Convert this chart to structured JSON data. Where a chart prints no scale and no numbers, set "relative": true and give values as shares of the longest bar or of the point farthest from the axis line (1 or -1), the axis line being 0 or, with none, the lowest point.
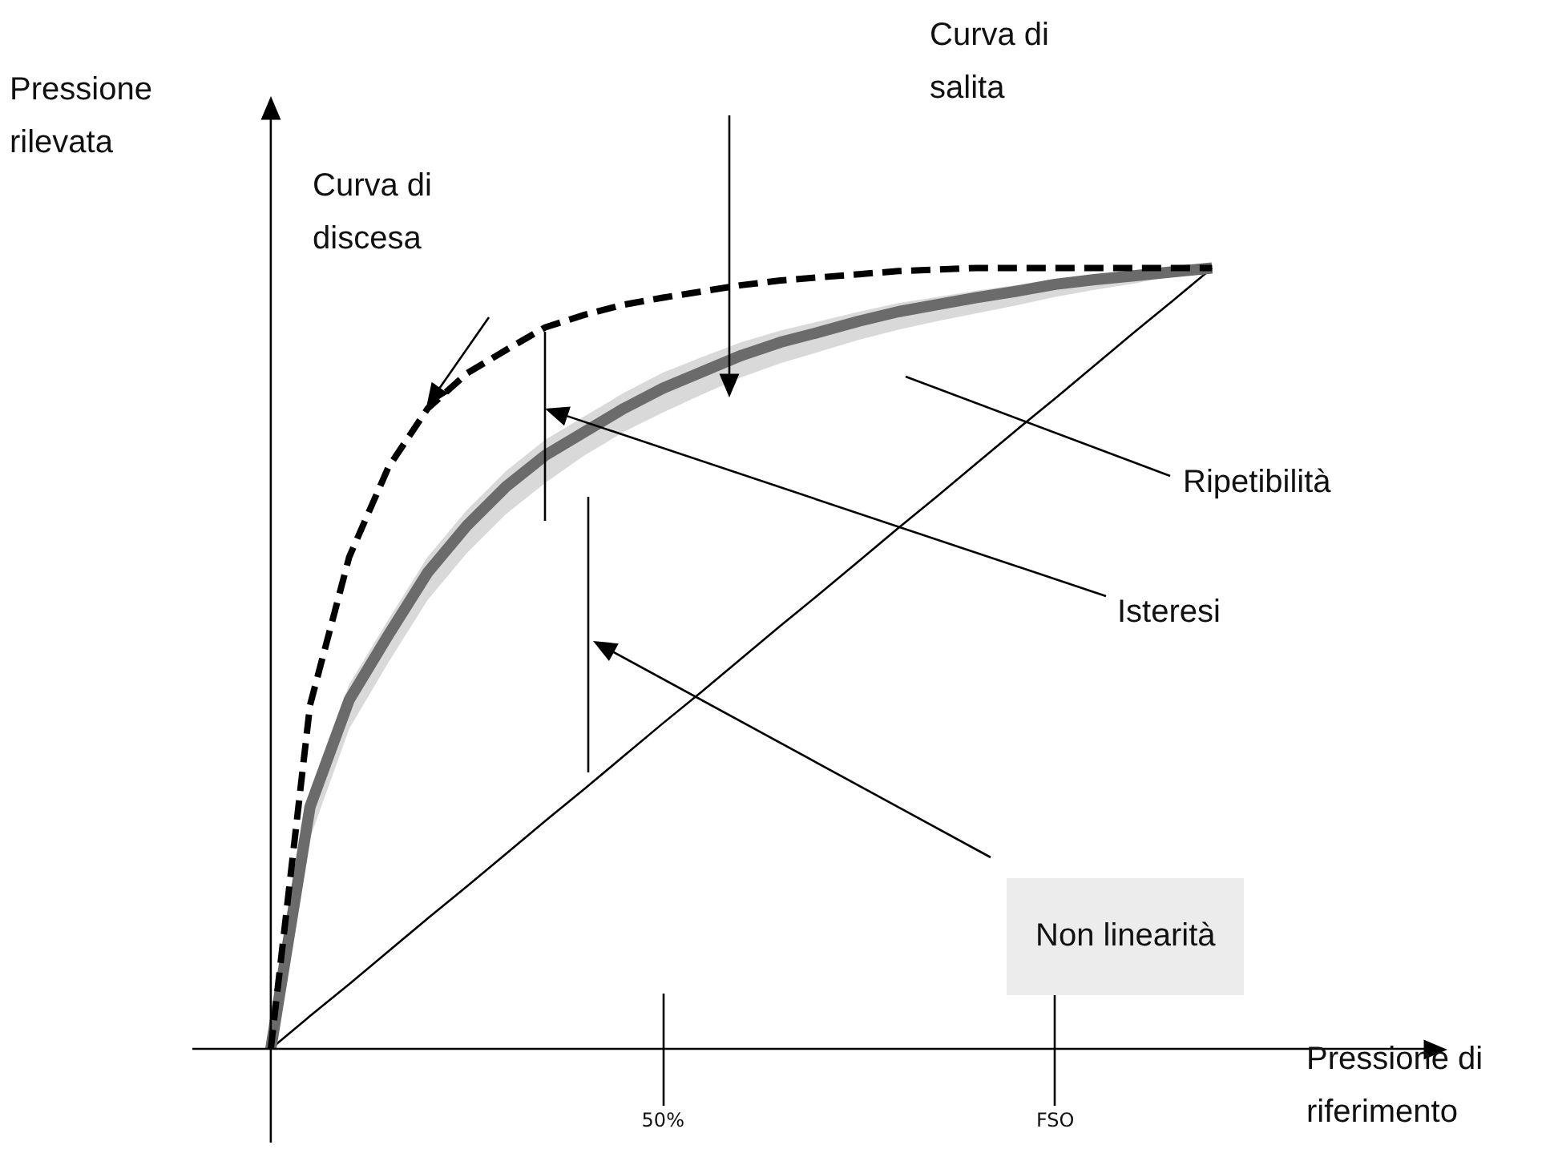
{
  "chart_data": {
    "type": "line",
    "relative": true,
    "xlabel": "Pressione di riferimento",
    "ylabel": "Pressione rilevata",
    "legend": false,
    "marker": "none",
    "categories": [
      null,
      null,
      null,
      null,
      null,
      null,
      null,
      null,
      null,
      null,
      null,
      null,
      "50%",
      null,
      null,
      null,
      null,
      null,
      null,
      null,
      null,
      null,
      "FSO",
      null,
      null,
      null,
      null,
      null,
      null,
      null,
      null,
      null,
      null
    ],
    "series": [
      {
        "color": "#000000",
        "line_style": "dashed",
        "values": [
          null,
          null,
          0,
          0.44,
          0.63,
          0.745,
          0.82,
          0.865,
          0.895,
          0.924,
          0.94,
          0.953,
          0.962,
          0.97,
          0.978,
          0.984,
          0.988,
          0.992,
          0.996,
          0.998,
          1,
          1,
          1,
          1,
          1,
          1,
          1,
          null,
          null,
          null,
          null,
          null,
          null
        ]
      },
      {
        "color": "#6b6b6b",
        "line_style": "solid",
        "values": [
          null,
          null,
          0,
          0.31,
          0.447,
          0.53,
          0.61,
          0.67,
          0.72,
          0.76,
          0.79,
          0.82,
          0.846,
          0.867,
          0.888,
          0.905,
          0.918,
          0.932,
          0.944,
          0.953,
          0.962,
          0.97,
          0.979,
          0.985,
          0.99,
          0.995,
          1,
          null,
          null,
          null,
          null,
          null,
          null
        ],
        "lower": [
          null,
          null,
          0,
          0.27,
          0.41,
          0.495,
          0.575,
          0.635,
          0.685,
          0.725,
          0.76,
          0.79,
          0.815,
          0.838,
          0.86,
          0.878,
          0.893,
          0.908,
          0.921,
          0.932,
          0.942,
          0.952,
          0.963,
          0.972,
          0.98,
          0.99,
          1,
          null,
          null,
          null,
          null,
          null,
          null
        ],
        "upper": [
          null,
          null,
          0,
          0.33,
          0.467,
          0.55,
          0.63,
          0.69,
          0.74,
          0.78,
          0.81,
          0.84,
          0.866,
          0.886,
          0.905,
          0.92,
          0.932,
          0.944,
          0.955,
          0.963,
          0.971,
          0.978,
          0.986,
          0.991,
          0.995,
          0.998,
          1,
          null,
          null,
          null,
          null,
          null,
          null
        ]
      },
      {
        "color": "#000000",
        "line_style": "solid",
        "values": [
          null,
          null,
          0,
          0.042,
          0.083,
          0.125,
          0.167,
          0.208,
          0.25,
          0.292,
          0.333,
          0.375,
          0.417,
          0.458,
          0.5,
          0.542,
          0.583,
          0.625,
          0.667,
          0.708,
          0.75,
          0.792,
          0.833,
          0.875,
          0.917,
          0.958,
          1,
          null,
          null,
          null,
          null,
          null,
          null
        ]
      }
    ],
    "annotations": [
      "Curva di salita",
      "Curva di discesa",
      "Isteresi",
      "Non linearità",
      "Ripetibilità"
    ]
  }
}
